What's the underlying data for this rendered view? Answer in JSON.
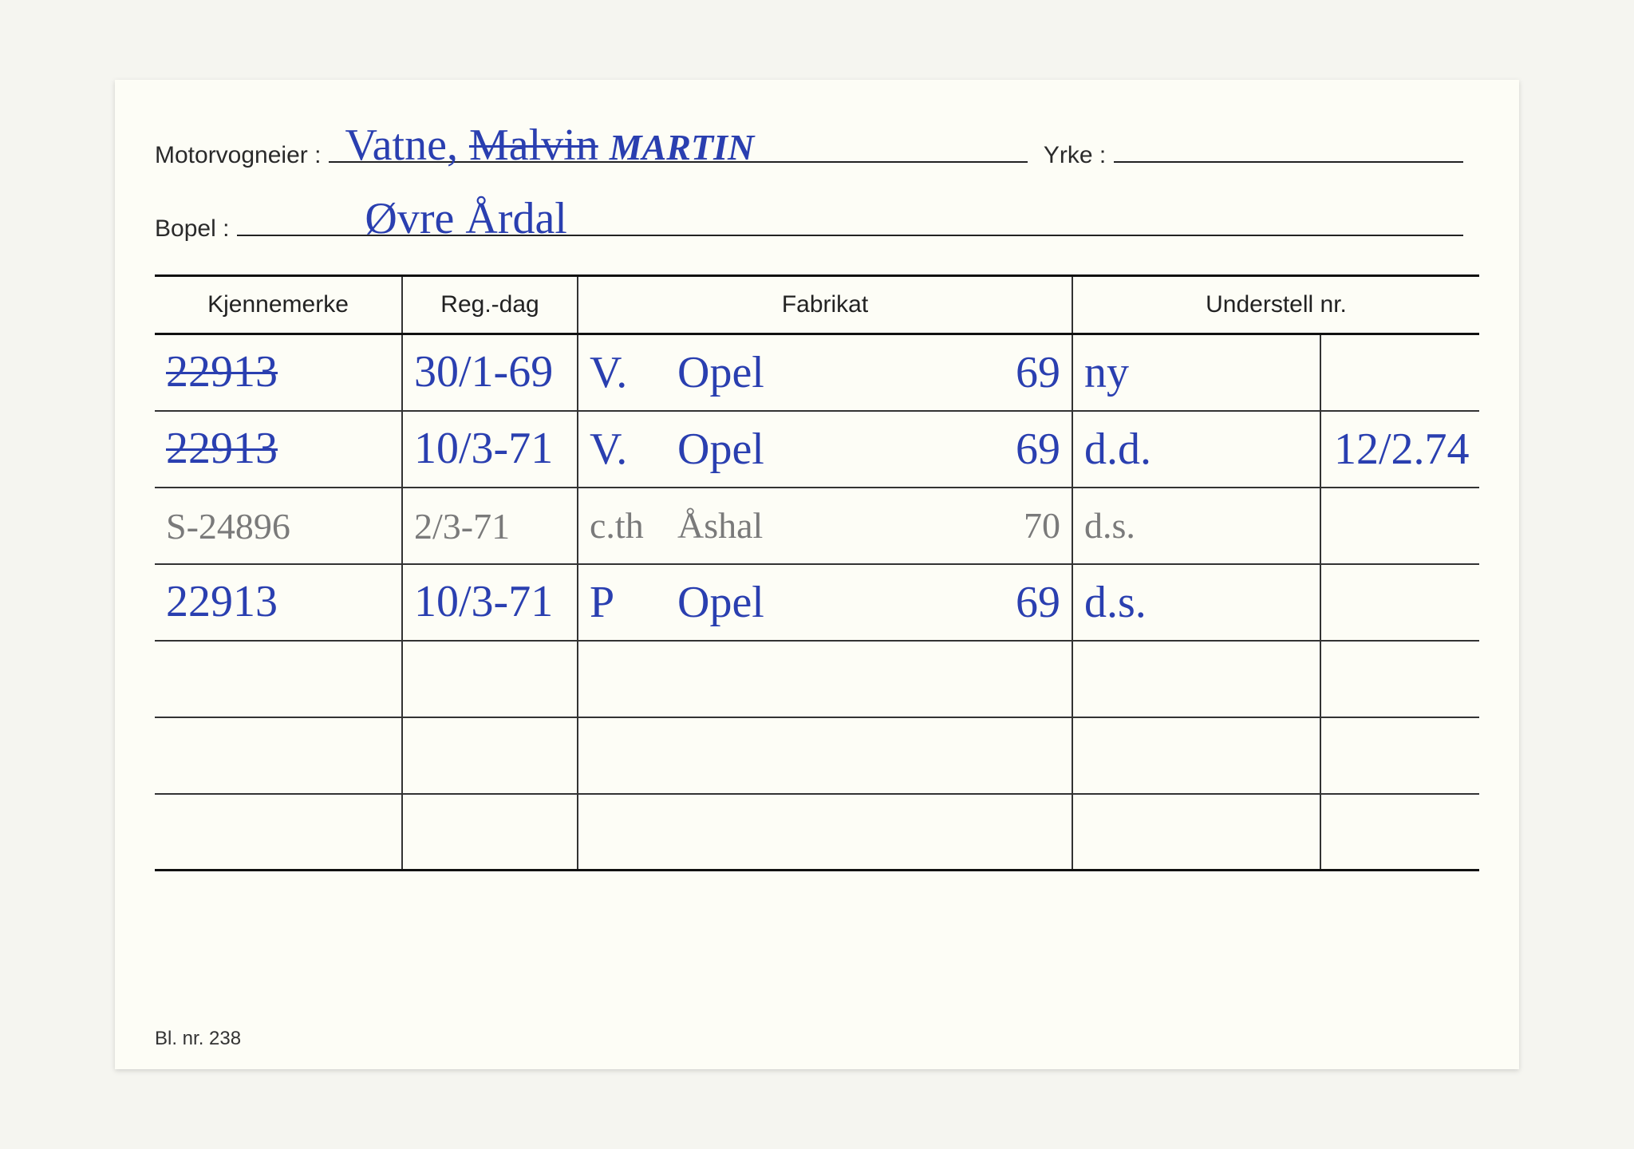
{
  "labels": {
    "owner": "Motorvogneier :",
    "occupation": "Yrke :",
    "residence": "Bopel :",
    "footer": "Bl. nr. 238"
  },
  "header": {
    "owner_surname": "Vatne",
    "owner_struck": "Malvin",
    "owner_corrected": "MARTIN",
    "occupation": "",
    "residence": "Øvre Årdal"
  },
  "columns": {
    "kjennemerke": "Kjennemerke",
    "regdag": "Reg.-dag",
    "fabrikat": "Fabrikat",
    "understell": "Understell nr."
  },
  "rows": [
    {
      "plate": "22913",
      "plate_struck": true,
      "ink": "blue",
      "regdag": "30/1-69",
      "fab_type": "V.",
      "fab_name": "Opel",
      "fab_year": "69",
      "und_a": "ny",
      "und_b": ""
    },
    {
      "plate": "22913",
      "plate_struck": true,
      "ink": "blue",
      "regdag": "10/3-71",
      "fab_type": "V.",
      "fab_name": "Opel",
      "fab_year": "69",
      "und_a": "d.d.",
      "und_b": "12/2.74"
    },
    {
      "plate": "S-24896",
      "plate_struck": false,
      "ink": "pencil",
      "regdag": "2/3-71",
      "fab_type": "c.th",
      "fab_name": "Åshal",
      "fab_year": "70",
      "und_a": "d.s.",
      "und_b": ""
    },
    {
      "plate": "22913",
      "plate_struck": false,
      "ink": "blue",
      "regdag": "10/3-71",
      "fab_type": "P",
      "fab_name": "Opel",
      "fab_year": "69",
      "und_a": "d.s.",
      "und_b": ""
    },
    {
      "plate": "",
      "regdag": "",
      "fab_type": "",
      "fab_name": "",
      "fab_year": "",
      "und_a": "",
      "und_b": ""
    },
    {
      "plate": "",
      "regdag": "",
      "fab_type": "",
      "fab_name": "",
      "fab_year": "",
      "und_a": "",
      "und_b": ""
    },
    {
      "plate": "",
      "regdag": "",
      "fab_type": "",
      "fab_name": "",
      "fab_year": "",
      "und_a": "",
      "und_b": ""
    }
  ],
  "colors": {
    "ink_blue": "#2a3fb0",
    "ink_pencil": "#7a7a7a",
    "paper": "#fdfdf6",
    "print": "#222222"
  }
}
